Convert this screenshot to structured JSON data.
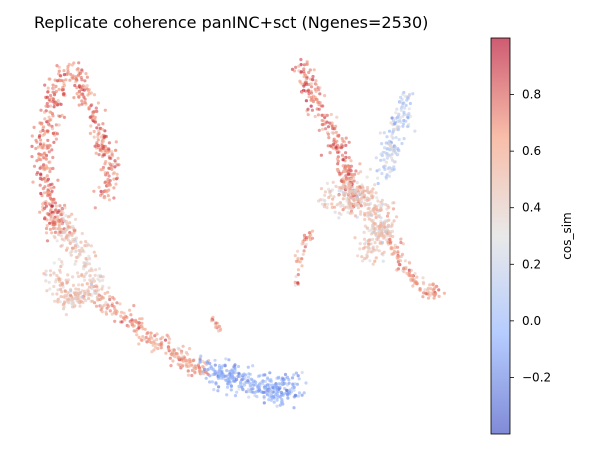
{
  "chart_data": {
    "type": "scatter",
    "title": "Replicate coherence panINC+sct (Ngenes=2530)",
    "colorbar": {
      "label": "cos_sim",
      "range": [
        -0.4,
        1.0
      ],
      "ticks": [
        -0.2,
        0.0,
        0.2,
        0.4,
        0.6,
        0.8
      ],
      "tick_labels": [
        "−0.2",
        "0.0",
        "0.2",
        "0.4",
        "0.6",
        "0.8"
      ],
      "colormap": "coolwarm",
      "colormap_stops": [
        "#3b4cc0",
        "#8db0fe",
        "#dddddd",
        "#f49a7b",
        "#b40426"
      ],
      "point_alpha": 0.6
    },
    "axes_visible": false,
    "grid": false,
    "n_points_shown_approx": 2530,
    "clusters": [
      {
        "region": "left-top branch",
        "cos_sim_mean": 0.72
      },
      {
        "region": "left-middle lobe",
        "cos_sim_mean": 0.45
      },
      {
        "region": "lower diagonal arm",
        "cos_sim_mean": 0.62
      },
      {
        "region": "bottom-center blob",
        "cos_sim_mean": -0.05
      },
      {
        "region": "right upper-left arm",
        "cos_sim_mean": 0.72
      },
      {
        "region": "right center lobe",
        "cos_sim_mean": 0.45
      },
      {
        "region": "right upper-right arm",
        "cos_sim_mean": 0.15
      },
      {
        "region": "right lower tail",
        "cos_sim_mean": 0.62
      }
    ]
  }
}
